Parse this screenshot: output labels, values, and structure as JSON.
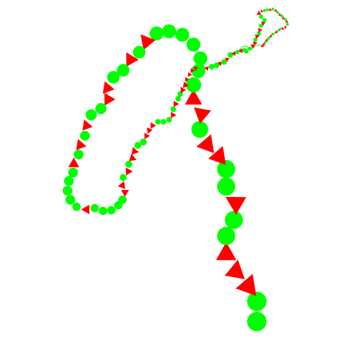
{
  "canvas": {
    "background": "#ffffff"
  },
  "legend": {
    "circle_color": "#00ff00",
    "triangle_color": "#ff0000"
  },
  "chain": {
    "marker_types": [
      "circle",
      "triangle"
    ],
    "description_visible_text": []
  }
}
